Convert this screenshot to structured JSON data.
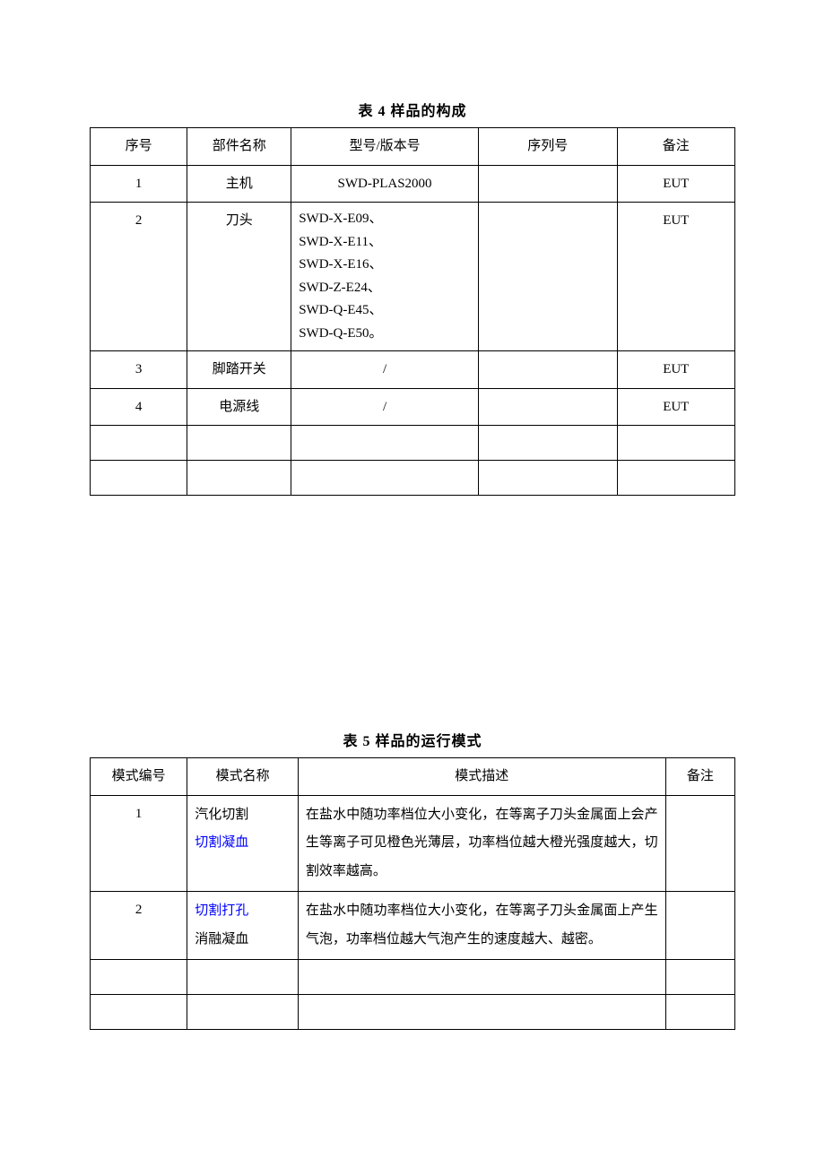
{
  "table4": {
    "title": "表 4 样品的构成",
    "columns": [
      "序号",
      "部件名称",
      "型号/版本号",
      "序列号",
      "备注"
    ],
    "col_widths_pct": [
      14,
      15,
      27,
      20,
      17
    ],
    "rows": [
      {
        "no": "1",
        "name": "主机",
        "model": "SWD-PLAS2000",
        "serial": "",
        "remark": "EUT"
      },
      {
        "no": "2",
        "name": "刀头",
        "model": "SWD-X-E09、\nSWD-X-E11、\nSWD-X-E16、\nSWD-Z-E24、\nSWD-Q-E45、\nSWD-Q-E50。",
        "serial": "",
        "remark": "EUT"
      },
      {
        "no": "3",
        "name": "脚踏开关",
        "model": "/",
        "serial": "",
        "remark": "EUT"
      },
      {
        "no": "4",
        "name": "电源线",
        "model": "/",
        "serial": "",
        "remark": "EUT"
      }
    ],
    "empty_rows": 2
  },
  "table5": {
    "title": "表 5 样品的运行模式",
    "columns": [
      "模式编号",
      "模式名称",
      "模式描述",
      "备注"
    ],
    "col_widths_pct": [
      14,
      16,
      53,
      10
    ],
    "rows": [
      {
        "no": "1",
        "name_line1": "汽化切割",
        "name_line2": "切割凝血",
        "name_line2_color": "blue",
        "desc": "在盐水中随功率档位大小变化，在等离子刀头金属面上会产生等离子可见橙色光薄层，功率档位越大橙光强度越大，切割效率越高。",
        "remark": ""
      },
      {
        "no": "2",
        "name_line1": "切割打孔",
        "name_line1_color": "blue",
        "name_line2": "消融凝血",
        "desc": "在盐水中随功率档位大小变化，在等离子刀头金属面上产生气泡，功率档位越大气泡产生的速度越大、越密。",
        "remark": ""
      }
    ],
    "empty_rows": 2
  }
}
